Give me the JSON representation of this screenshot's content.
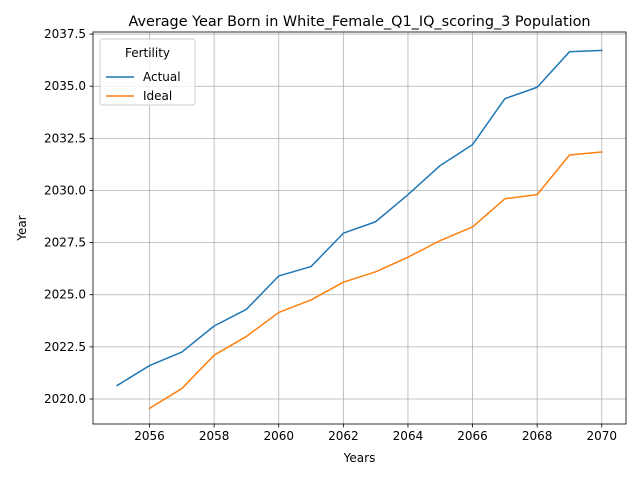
{
  "chart_data": {
    "type": "line",
    "title": "Average Year Born in White_Female_Q1_IQ_scoring_3 Population",
    "xlabel": "Years",
    "ylabel": "Year",
    "xlim": [
      2054.25,
      2070.75
    ],
    "ylim": [
      2018.8,
      2037.6
    ],
    "xticks": [
      2056,
      2058,
      2060,
      2062,
      2064,
      2066,
      2068,
      2070
    ],
    "xtick_labels": [
      "2056",
      "2058",
      "2060",
      "2062",
      "2064",
      "2066",
      "2068",
      "2070"
    ],
    "yticks": [
      2020.0,
      2022.5,
      2025.0,
      2027.5,
      2030.0,
      2032.5,
      2035.0,
      2037.5
    ],
    "ytick_labels": [
      "2020.0",
      "2022.5",
      "2025.0",
      "2027.5",
      "2030.0",
      "2032.5",
      "2035.0",
      "2037.5"
    ],
    "grid": true,
    "legend": {
      "title": "Fertility",
      "placement": "upper-left"
    },
    "series": [
      {
        "name": "Actual",
        "color": "#1f77b4",
        "x": [
          2055,
          2056,
          2057,
          2058,
          2059,
          2060,
          2061,
          2062,
          2063,
          2064,
          2065,
          2066,
          2067,
          2068,
          2069,
          2070
        ],
        "y": [
          2020.65,
          2021.6,
          2022.25,
          2023.5,
          2024.3,
          2025.9,
          2026.35,
          2027.95,
          2028.5,
          2029.8,
          2031.2,
          2032.2,
          2034.4,
          2034.95,
          2036.65,
          2036.72
        ]
      },
      {
        "name": "Ideal",
        "color": "#ff7f0e",
        "x": [
          2056,
          2057,
          2058,
          2059,
          2060,
          2061,
          2062,
          2063,
          2064,
          2065,
          2066,
          2067,
          2068,
          2069,
          2070
        ],
        "y": [
          2019.55,
          2020.5,
          2022.1,
          2023.0,
          2024.15,
          2024.75,
          2025.6,
          2026.1,
          2026.8,
          2027.6,
          2028.25,
          2029.6,
          2029.8,
          2031.7,
          2031.85
        ]
      }
    ]
  }
}
